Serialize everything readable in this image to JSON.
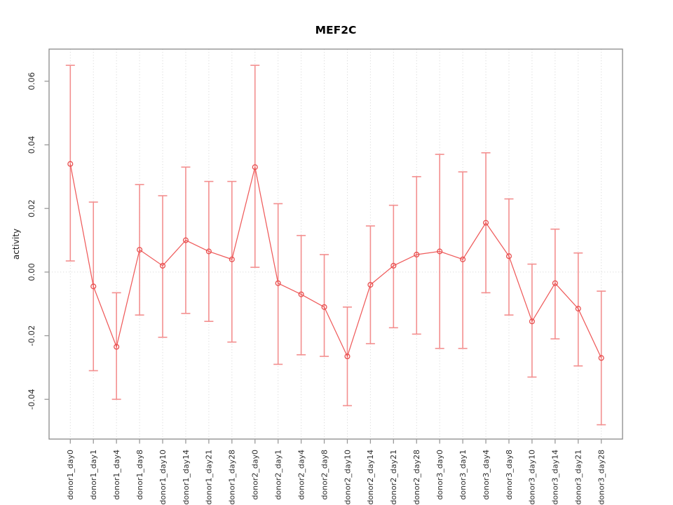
{
  "chart_data": {
    "type": "line",
    "title": "MEF2C",
    "xlabel": "",
    "ylabel": "activity",
    "categories": [
      "donor1_day0",
      "donor1_day1",
      "donor1_day4",
      "donor1_day8",
      "donor1_day10",
      "donor1_day14",
      "donor1_day21",
      "donor1_day28",
      "donor2_day0",
      "donor2_day1",
      "donor2_day4",
      "donor2_day8",
      "donor2_day10",
      "donor2_day14",
      "donor2_day21",
      "donor2_day28",
      "donor3_day0",
      "donor3_day1",
      "donor3_day4",
      "donor3_day8",
      "donor3_day10",
      "donor3_day14",
      "donor3_day21",
      "donor3_day28"
    ],
    "series": [
      {
        "name": "activity",
        "values": [
          0.034,
          -0.0045,
          -0.0235,
          0.007,
          0.002,
          0.01,
          0.0065,
          0.004,
          0.033,
          -0.0035,
          -0.007,
          -0.011,
          -0.0265,
          -0.004,
          0.002,
          0.0055,
          0.0065,
          0.004,
          0.0155,
          0.005,
          -0.0155,
          -0.0035,
          -0.0115,
          -0.027
        ],
        "lower": [
          0.0035,
          -0.031,
          -0.04,
          -0.0135,
          -0.0205,
          -0.013,
          -0.0155,
          -0.022,
          0.0015,
          -0.029,
          -0.026,
          -0.0265,
          -0.042,
          -0.0225,
          -0.0175,
          -0.0195,
          -0.024,
          -0.024,
          -0.0065,
          -0.0135,
          -0.033,
          -0.021,
          -0.0295,
          -0.048
        ],
        "upper": [
          0.065,
          0.022,
          -0.0065,
          0.0275,
          0.024,
          0.033,
          0.0285,
          0.0285,
          0.065,
          0.0215,
          0.0115,
          0.0055,
          -0.011,
          0.0145,
          0.021,
          0.03,
          0.037,
          0.0315,
          0.0375,
          0.023,
          0.0025,
          0.0135,
          0.006,
          -0.006
        ]
      }
    ],
    "error_bars": true,
    "point_style": "open-circle",
    "ytick_labels": [
      "0.06",
      "0.04",
      "0.02",
      "0.00",
      "-0.02",
      "-0.04"
    ],
    "ytick_values": [
      0.06,
      0.04,
      0.02,
      0,
      -0.02,
      -0.04
    ],
    "ylim": [
      -0.0525,
      0.0701
    ],
    "grid": "dotted vertical gridline at every category; dotted horizontal line at y=0",
    "legend": "none",
    "colors": {
      "series_line": "#ef5b5b",
      "point_stroke": "#e85050",
      "error_bar": "#f38f8f",
      "grid": "#dcdcdc",
      "box": "#8a8a8a",
      "tick": "#9a9a9a",
      "tick_text": "#2e2e2e",
      "title_text": "#000000",
      "background": "#ffffff"
    }
  }
}
